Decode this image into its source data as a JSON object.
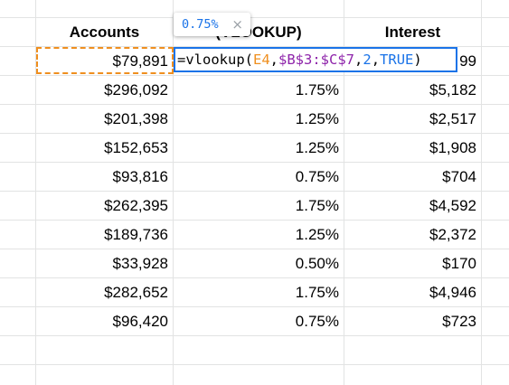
{
  "headers": {
    "accounts": "Accounts",
    "rate": "(VLOOKUP)",
    "interest": "Interest"
  },
  "rows": [
    {
      "account": "$79,891",
      "rate": "",
      "interest": "99"
    },
    {
      "account": "$296,092",
      "rate": "1.75%",
      "interest": "$5,182"
    },
    {
      "account": "$201,398",
      "rate": "1.25%",
      "interest": "$2,517"
    },
    {
      "account": "$152,653",
      "rate": "1.25%",
      "interest": "$1,908"
    },
    {
      "account": "$93,816",
      "rate": "0.75%",
      "interest": "$704"
    },
    {
      "account": "$262,395",
      "rate": "1.75%",
      "interest": "$4,592"
    },
    {
      "account": "$189,736",
      "rate": "1.25%",
      "interest": "$2,372"
    },
    {
      "account": "$33,928",
      "rate": "0.50%",
      "interest": "$170"
    },
    {
      "account": "$282,652",
      "rate": "1.75%",
      "interest": "$4,946"
    },
    {
      "account": "$96,420",
      "rate": "0.75%",
      "interest": "$723"
    }
  ],
  "formula": {
    "prefix": "=vlookup(",
    "arg1": "E4",
    "sep1": ",",
    "arg2": "$B$3:$C$7",
    "sep2": ",",
    "arg3": "2",
    "sep3": ",",
    "arg4": "TRUE",
    "suffix": ")"
  },
  "tooltip": {
    "value": "0.75%",
    "close": "×"
  },
  "colors": {
    "gridline": "#e2e3e3",
    "formula_border": "#1a73e8",
    "ref_orange": "#ef8f1f",
    "ref_purple": "#8e24aa",
    "number_blue": "#1a73e8"
  }
}
